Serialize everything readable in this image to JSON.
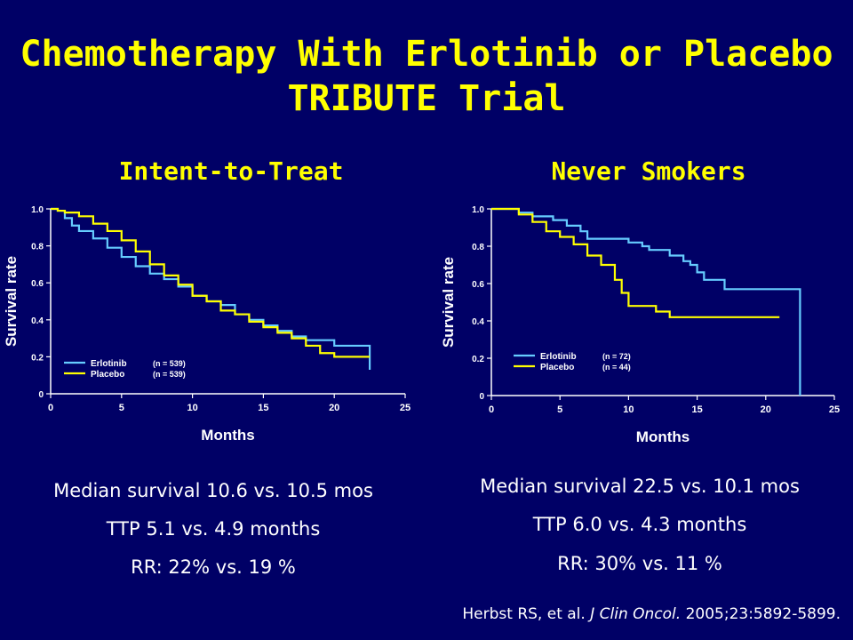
{
  "slide": {
    "title_line1": "Chemotherapy With Erlotinib or Placebo",
    "title_line2": "TRIBUTE Trial",
    "left_panel_title": "Intent-to-Treat",
    "right_panel_title": "Never Smokers",
    "left_stats": [
      "Median survival 10.6  vs. 10.5 mos",
      "TTP 5.1 vs. 4.9 months",
      "RR: 22% vs. 19 %"
    ],
    "right_stats": [
      "Median survival 22.5 vs. 10.1 mos",
      "TTP 6.0 vs. 4.3 months",
      "RR: 30% vs. 11 %"
    ],
    "citation_authors": "Herbst RS, et al. ",
    "citation_journal": "J Clin Oncol.",
    "citation_rest": " 2005;23:5892-5899."
  },
  "colors": {
    "background": "#000066",
    "title": "#ffff00",
    "erlotinib": "#66ccff",
    "placebo": "#ffff00",
    "axis": "#ffffff"
  },
  "chart_data": [
    {
      "type": "line",
      "title": "Intent-to-Treat",
      "xlabel": "Months",
      "ylabel": "Survival rate",
      "xlim": [
        0,
        25
      ],
      "ylim": [
        0,
        1.0
      ],
      "xticks": [
        "0",
        "5",
        "10",
        "15",
        "20",
        "25"
      ],
      "yticks": [
        "0",
        "0.2",
        "0.4",
        "0.6",
        "0.8",
        "1.0"
      ],
      "legend_position": "bottom-left",
      "series": [
        {
          "name": "Erlotinib",
          "n_label": "(n = 539)",
          "color": "#66ccff",
          "x": [
            0,
            0.5,
            1,
            1.5,
            2,
            3,
            4,
            5,
            6,
            7,
            8,
            9,
            10,
            11,
            12,
            13,
            14,
            15,
            16,
            17,
            18,
            19,
            20,
            21,
            22.5,
            22.5
          ],
          "y": [
            1.0,
            0.99,
            0.95,
            0.91,
            0.88,
            0.84,
            0.79,
            0.74,
            0.69,
            0.65,
            0.62,
            0.58,
            0.53,
            0.5,
            0.48,
            0.43,
            0.4,
            0.37,
            0.34,
            0.31,
            0.29,
            0.29,
            0.26,
            0.26,
            0.26,
            0.13
          ]
        },
        {
          "name": "Placebo",
          "n_label": "(n = 539)",
          "color": "#ffff00",
          "x": [
            0,
            0.5,
            1,
            2,
            3,
            4,
            5,
            6,
            7,
            8,
            9,
            10,
            11,
            12,
            13,
            14,
            15,
            16,
            17,
            18,
            19,
            20,
            21,
            22.5
          ],
          "y": [
            1.0,
            0.99,
            0.98,
            0.96,
            0.92,
            0.88,
            0.83,
            0.77,
            0.7,
            0.64,
            0.59,
            0.53,
            0.5,
            0.45,
            0.43,
            0.39,
            0.36,
            0.33,
            0.3,
            0.26,
            0.22,
            0.2,
            0.2,
            0.2
          ]
        }
      ]
    },
    {
      "type": "line",
      "title": "Never Smokers",
      "xlabel": "Months",
      "ylabel": "Survival rate",
      "xlim": [
        0,
        25
      ],
      "ylim": [
        0,
        1.0
      ],
      "xticks": [
        "0",
        "5",
        "10",
        "15",
        "20",
        "25"
      ],
      "yticks": [
        "0",
        "0.2",
        "0.4",
        "0.6",
        "0.8",
        "1.0"
      ],
      "legend_position": "bottom-left",
      "series": [
        {
          "name": "Erlotinib",
          "n_label": "(n = 72)",
          "color": "#66ccff",
          "x": [
            0,
            2,
            3,
            4.5,
            5.5,
            6.5,
            7,
            9,
            10,
            11,
            11.5,
            12.5,
            13,
            14,
            14.5,
            15,
            15.5,
            17,
            22.5,
            22.5
          ],
          "y": [
            1.0,
            0.98,
            0.96,
            0.94,
            0.91,
            0.88,
            0.84,
            0.84,
            0.82,
            0.8,
            0.78,
            0.78,
            0.75,
            0.72,
            0.7,
            0.66,
            0.62,
            0.57,
            0.57,
            0.0
          ]
        },
        {
          "name": "Placebo",
          "n_label": "(n = 44)",
          "color": "#ffff00",
          "x": [
            0,
            2,
            3,
            4,
            5,
            6,
            7,
            8,
            9,
            9.5,
            10,
            11,
            12,
            13,
            15,
            17,
            21
          ],
          "y": [
            1.0,
            0.97,
            0.93,
            0.88,
            0.85,
            0.81,
            0.75,
            0.7,
            0.62,
            0.55,
            0.48,
            0.48,
            0.45,
            0.42,
            0.42,
            0.42,
            0.42
          ]
        }
      ]
    }
  ]
}
